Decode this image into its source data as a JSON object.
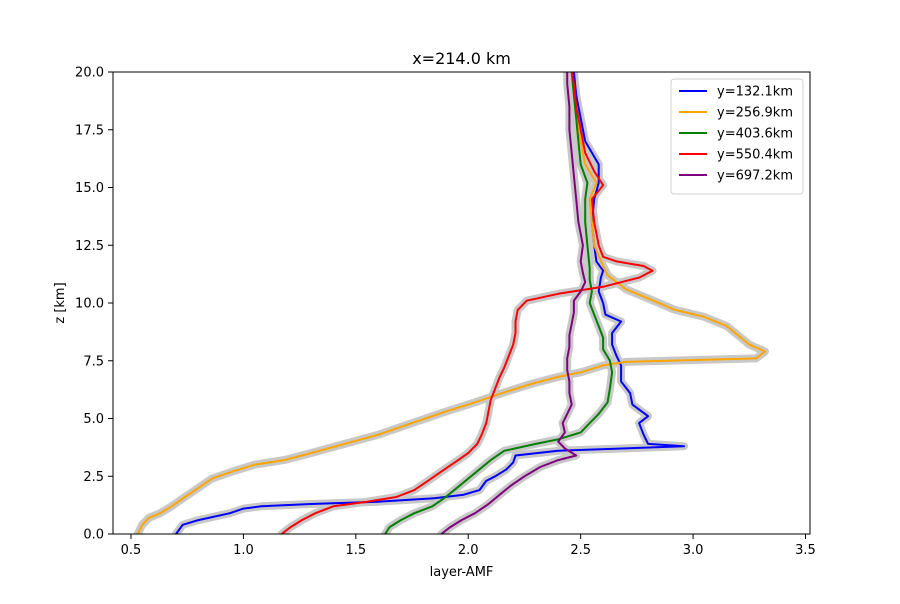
{
  "chart_data": {
    "type": "line",
    "title": "x=214.0 km",
    "xlabel": "layer-AMF",
    "ylabel": "z [km]",
    "xlim": [
      0.42,
      3.52
    ],
    "ylim": [
      0,
      20
    ],
    "x_ticks": [
      0.5,
      1.0,
      1.5,
      2.0,
      2.5,
      3.0,
      3.5
    ],
    "x_tick_labels": [
      "0.5",
      "1.0",
      "1.5",
      "2.0",
      "2.5",
      "3.0",
      "3.5"
    ],
    "y_ticks": [
      0,
      2.5,
      5,
      7.5,
      10,
      12.5,
      15,
      17.5,
      20
    ],
    "y_tick_labels": [
      "0.0",
      "2.5",
      "5.0",
      "7.5",
      "10.0",
      "12.5",
      "15.0",
      "17.5",
      "20.0"
    ],
    "grid": false,
    "legend_position": "top-right",
    "uncertainty_band_color": "#c8c8c8",
    "series": [
      {
        "name": "y=132.1km",
        "color": "#0000ff",
        "points": [
          [
            0.7,
            0
          ],
          [
            0.73,
            0.4
          ],
          [
            0.8,
            0.6
          ],
          [
            0.94,
            0.9
          ],
          [
            1.0,
            1.1
          ],
          [
            1.08,
            1.2
          ],
          [
            1.3,
            1.3
          ],
          [
            1.6,
            1.4
          ],
          [
            1.85,
            1.55
          ],
          [
            1.98,
            1.7
          ],
          [
            2.05,
            1.9
          ],
          [
            2.08,
            2.3
          ],
          [
            2.12,
            2.5
          ],
          [
            2.17,
            2.8
          ],
          [
            2.2,
            3.1
          ],
          [
            2.21,
            3.4
          ],
          [
            2.4,
            3.6
          ],
          [
            2.96,
            3.8
          ],
          [
            2.8,
            3.9
          ],
          [
            2.78,
            4.3
          ],
          [
            2.76,
            4.8
          ],
          [
            2.8,
            5.1
          ],
          [
            2.73,
            5.6
          ],
          [
            2.72,
            6.1
          ],
          [
            2.68,
            6.6
          ],
          [
            2.68,
            7.3
          ],
          [
            2.66,
            7.7
          ],
          [
            2.64,
            8.2
          ],
          [
            2.64,
            8.7
          ],
          [
            2.68,
            9.2
          ],
          [
            2.61,
            9.5
          ],
          [
            2.6,
            10.0
          ],
          [
            2.58,
            10.5
          ],
          [
            2.59,
            11.1
          ],
          [
            2.6,
            11.4
          ],
          [
            2.57,
            11.8
          ],
          [
            2.56,
            12.5
          ],
          [
            2.55,
            13.5
          ],
          [
            2.56,
            14.5
          ],
          [
            2.58,
            15.2
          ],
          [
            2.58,
            16.0
          ],
          [
            2.52,
            17.0
          ],
          [
            2.5,
            18.0
          ],
          [
            2.48,
            19.0
          ],
          [
            2.47,
            20.0
          ]
        ]
      },
      {
        "name": "y=256.9km",
        "color": "#ffa500",
        "points": [
          [
            0.53,
            0
          ],
          [
            0.55,
            0.4
          ],
          [
            0.58,
            0.7
          ],
          [
            0.63,
            0.9
          ],
          [
            0.68,
            1.2
          ],
          [
            0.74,
            1.6
          ],
          [
            0.8,
            2.0
          ],
          [
            0.86,
            2.4
          ],
          [
            0.95,
            2.7
          ],
          [
            1.05,
            3.0
          ],
          [
            1.18,
            3.2
          ],
          [
            1.3,
            3.5
          ],
          [
            1.45,
            3.9
          ],
          [
            1.6,
            4.3
          ],
          [
            1.75,
            4.8
          ],
          [
            1.9,
            5.3
          ],
          [
            2.03,
            5.7
          ],
          [
            2.15,
            6.1
          ],
          [
            2.28,
            6.5
          ],
          [
            2.4,
            6.8
          ],
          [
            2.5,
            7.0
          ],
          [
            2.6,
            7.3
          ],
          [
            2.7,
            7.45
          ],
          [
            3.28,
            7.6
          ],
          [
            3.32,
            7.9
          ],
          [
            3.25,
            8.2
          ],
          [
            3.2,
            8.6
          ],
          [
            3.15,
            9.0
          ],
          [
            3.05,
            9.4
          ],
          [
            2.92,
            9.7
          ],
          [
            2.8,
            10.2
          ],
          [
            2.7,
            10.6
          ],
          [
            2.66,
            10.9
          ],
          [
            2.62,
            11.2
          ],
          [
            2.6,
            11.6
          ],
          [
            2.56,
            12.5
          ],
          [
            2.55,
            13.5
          ],
          [
            2.54,
            14.5
          ],
          [
            2.57,
            15.2
          ],
          [
            2.52,
            16.0
          ],
          [
            2.5,
            17.0
          ],
          [
            2.48,
            18.0
          ],
          [
            2.47,
            19.0
          ],
          [
            2.46,
            20.0
          ]
        ]
      },
      {
        "name": "y=403.6km",
        "color": "#008000",
        "points": [
          [
            1.63,
            0
          ],
          [
            1.65,
            0.3
          ],
          [
            1.7,
            0.6
          ],
          [
            1.76,
            0.9
          ],
          [
            1.84,
            1.2
          ],
          [
            1.9,
            1.6
          ],
          [
            1.95,
            2.0
          ],
          [
            2.0,
            2.4
          ],
          [
            2.05,
            2.8
          ],
          [
            2.1,
            3.2
          ],
          [
            2.16,
            3.6
          ],
          [
            2.3,
            3.9
          ],
          [
            2.4,
            4.1
          ],
          [
            2.5,
            4.4
          ],
          [
            2.54,
            4.8
          ],
          [
            2.58,
            5.2
          ],
          [
            2.62,
            5.7
          ],
          [
            2.63,
            6.3
          ],
          [
            2.64,
            7.0
          ],
          [
            2.63,
            7.5
          ],
          [
            2.6,
            8.0
          ],
          [
            2.6,
            8.5
          ],
          [
            2.58,
            9.0
          ],
          [
            2.56,
            9.5
          ],
          [
            2.54,
            10.0
          ],
          [
            2.55,
            10.5
          ],
          [
            2.54,
            11.0
          ],
          [
            2.54,
            11.5
          ],
          [
            2.53,
            12.5
          ],
          [
            2.52,
            13.5
          ],
          [
            2.52,
            14.5
          ],
          [
            2.53,
            15.2
          ],
          [
            2.5,
            16.0
          ],
          [
            2.49,
            17.0
          ],
          [
            2.48,
            18.0
          ],
          [
            2.47,
            19.0
          ],
          [
            2.46,
            20.0
          ]
        ]
      },
      {
        "name": "y=550.4km",
        "color": "#ff0000",
        "points": [
          [
            1.17,
            0
          ],
          [
            1.21,
            0.3
          ],
          [
            1.26,
            0.6
          ],
          [
            1.32,
            0.9
          ],
          [
            1.4,
            1.2
          ],
          [
            1.55,
            1.4
          ],
          [
            1.68,
            1.6
          ],
          [
            1.76,
            1.9
          ],
          [
            1.82,
            2.3
          ],
          [
            1.88,
            2.7
          ],
          [
            1.94,
            3.1
          ],
          [
            2.0,
            3.5
          ],
          [
            2.04,
            3.9
          ],
          [
            2.06,
            4.3
          ],
          [
            2.08,
            4.8
          ],
          [
            2.09,
            5.3
          ],
          [
            2.1,
            5.8
          ],
          [
            2.12,
            6.3
          ],
          [
            2.14,
            6.8
          ],
          [
            2.16,
            7.2
          ],
          [
            2.18,
            7.7
          ],
          [
            2.2,
            8.2
          ],
          [
            2.21,
            8.7
          ],
          [
            2.21,
            9.2
          ],
          [
            2.22,
            9.7
          ],
          [
            2.26,
            10.1
          ],
          [
            2.4,
            10.4
          ],
          [
            2.6,
            10.7
          ],
          [
            2.76,
            11.1
          ],
          [
            2.82,
            11.4
          ],
          [
            2.78,
            11.6
          ],
          [
            2.66,
            11.8
          ],
          [
            2.6,
            12.0
          ],
          [
            2.58,
            12.5
          ],
          [
            2.56,
            13.5
          ],
          [
            2.55,
            14.5
          ],
          [
            2.6,
            15.1
          ],
          [
            2.56,
            15.7
          ],
          [
            2.52,
            16.5
          ],
          [
            2.5,
            17.5
          ],
          [
            2.48,
            18.5
          ],
          [
            2.47,
            19.5
          ],
          [
            2.46,
            20.0
          ]
        ]
      },
      {
        "name": "y=697.2km",
        "color": "#800080",
        "points": [
          [
            1.88,
            0
          ],
          [
            1.92,
            0.3
          ],
          [
            1.97,
            0.6
          ],
          [
            2.03,
            0.9
          ],
          [
            2.09,
            1.3
          ],
          [
            2.14,
            1.7
          ],
          [
            2.19,
            2.1
          ],
          [
            2.25,
            2.5
          ],
          [
            2.32,
            2.9
          ],
          [
            2.4,
            3.2
          ],
          [
            2.48,
            3.4
          ],
          [
            2.43,
            3.7
          ],
          [
            2.4,
            4.0
          ],
          [
            2.43,
            4.4
          ],
          [
            2.42,
            4.8
          ],
          [
            2.44,
            5.2
          ],
          [
            2.46,
            5.6
          ],
          [
            2.45,
            6.1
          ],
          [
            2.45,
            6.6
          ],
          [
            2.44,
            7.1
          ],
          [
            2.44,
            7.6
          ],
          [
            2.45,
            8.1
          ],
          [
            2.45,
            8.6
          ],
          [
            2.46,
            9.1
          ],
          [
            2.47,
            9.6
          ],
          [
            2.47,
            10.1
          ],
          [
            2.5,
            10.5
          ],
          [
            2.52,
            10.9
          ],
          [
            2.51,
            11.3
          ],
          [
            2.5,
            11.8
          ],
          [
            2.51,
            12.5
          ],
          [
            2.49,
            13.5
          ],
          [
            2.48,
            14.5
          ],
          [
            2.47,
            15.5
          ],
          [
            2.46,
            16.5
          ],
          [
            2.45,
            17.5
          ],
          [
            2.45,
            18.5
          ],
          [
            2.44,
            19.5
          ],
          [
            2.44,
            20.0
          ]
        ]
      }
    ]
  }
}
